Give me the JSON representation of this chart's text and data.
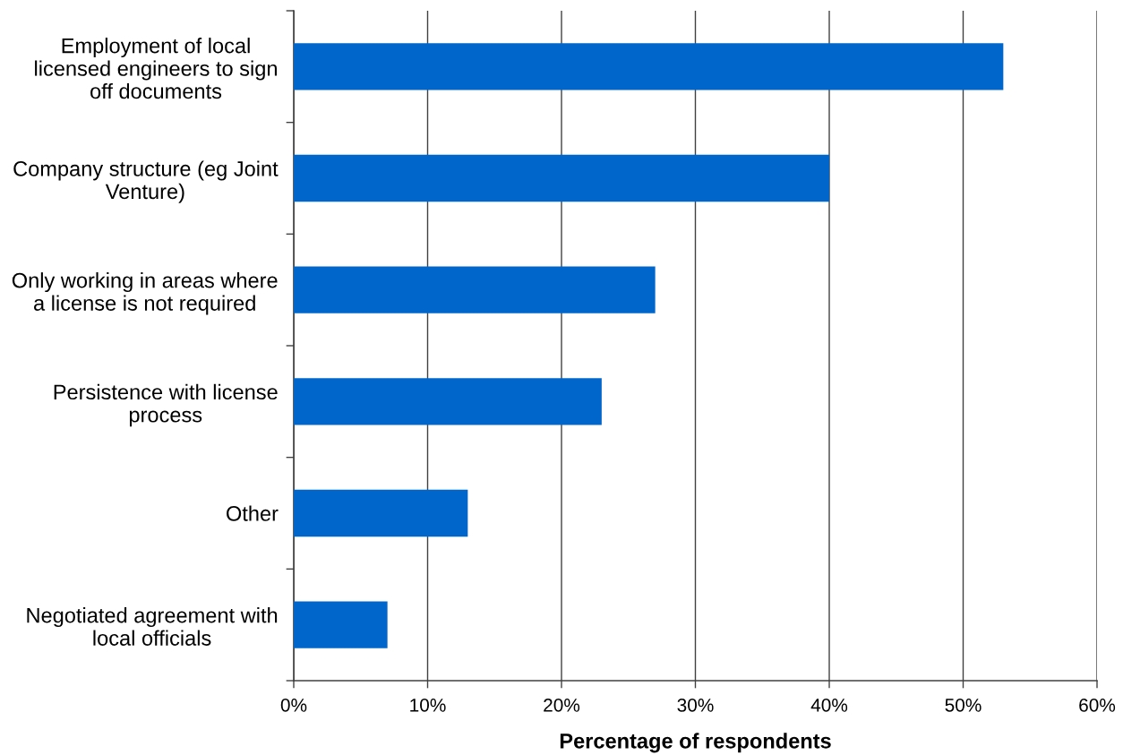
{
  "chart_data": {
    "type": "bar",
    "orientation": "horizontal",
    "xlabel": "Percentage of respondents",
    "categories": [
      "Employment of local\nlicensed engineers to sign\noff documents",
      "Company structure (eg Joint\nVenture)",
      "Only working in areas where\na license is not required",
      "Persistence with license\nprocess",
      "Other",
      "Negotiated agreement with\nlocal officials"
    ],
    "values": [
      53,
      40,
      27,
      23,
      13,
      7
    ],
    "color": "#0066cc",
    "xlim": [
      0,
      60
    ],
    "xticks": [
      {
        "value": 0,
        "label": "0%"
      },
      {
        "value": 10,
        "label": "10%"
      },
      {
        "value": 20,
        "label": "20%"
      },
      {
        "value": 30,
        "label": "30%"
      },
      {
        "value": 40,
        "label": "40%"
      },
      {
        "value": 50,
        "label": "50%"
      },
      {
        "value": 60,
        "label": "60%"
      }
    ],
    "grid": "x",
    "legend": false
  }
}
